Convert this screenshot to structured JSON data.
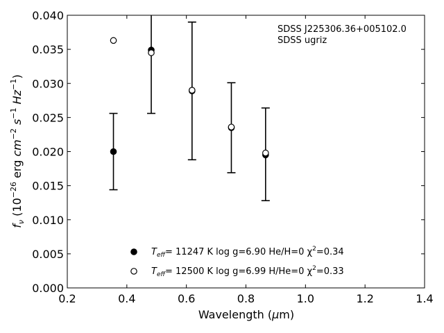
{
  "chart_data": {
    "type": "scatter",
    "xlabel": "Wavelength (μm)",
    "ylabel": "fν (10⁻²⁶ erg cm⁻² s⁻¹ Hz⁻¹)",
    "xlim": [
      0.2,
      1.4
    ],
    "ylim": [
      0.0,
      0.04
    ],
    "x_ticks": [
      "0.2",
      "0.4",
      "0.6",
      "0.8",
      "1.0",
      "1.2",
      "1.4"
    ],
    "y_ticks": [
      "0.000",
      "0.005",
      "0.010",
      "0.015",
      "0.020",
      "0.025",
      "0.030",
      "0.035",
      "0.040"
    ],
    "annotation": [
      "SDSS J225306.36+005102.0",
      "SDSS ugriz"
    ],
    "observed": {
      "x": [
        0.355,
        0.482,
        0.619,
        0.751,
        0.866
      ],
      "y": [
        0.02,
        0.0349,
        0.0289,
        0.0235,
        0.0196
      ],
      "err": [
        0.0056,
        0.0093,
        0.0101,
        0.0066,
        0.0068
      ]
    },
    "series": [
      {
        "name": "Teff= 11247 K  log g=6.90  He/H=0  χ²=0.34",
        "marker": "filled",
        "x": [
          0.355,
          0.482,
          0.619,
          0.751,
          0.866
        ],
        "y": [
          0.02,
          0.0349,
          0.0289,
          0.0235,
          0.0195
        ]
      },
      {
        "name": "Teff= 12500 K  log g=6.99  H/He=0  χ²=0.33",
        "marker": "open",
        "x": [
          0.355,
          0.482,
          0.619,
          0.751,
          0.866
        ],
        "y": [
          0.0363,
          0.0345,
          0.029,
          0.0236,
          0.0198
        ]
      }
    ],
    "legend": [
      {
        "marker": "filled",
        "teff_sub": "eff",
        "text": "= 11247 K  log g=6.90  He/H=0  χ",
        "sup": "2",
        "tail": "=0.34"
      },
      {
        "marker": "open",
        "teff_sub": "eff",
        "text": "= 12500 K  log g=6.99  H/He=0  χ",
        "sup": "2",
        "tail": "=0.33"
      }
    ],
    "legend_position": "bottom-center",
    "grid": false,
    "colors": {
      "marker": "#000000",
      "open_fill": "#ffffff",
      "axis": "#000000"
    }
  }
}
